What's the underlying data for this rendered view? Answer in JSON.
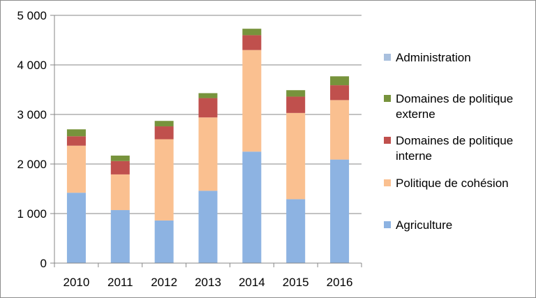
{
  "chart_data": {
    "type": "bar",
    "stacked": true,
    "categories": [
      "2010",
      "2011",
      "2012",
      "2013",
      "2014",
      "2015",
      "2016"
    ],
    "series": [
      {
        "name": "Agriculture",
        "color": "#8db3e2",
        "values": [
          1420,
          1070,
          860,
          1460,
          2250,
          1290,
          2090
        ]
      },
      {
        "name": "Politique de cohésion",
        "color": "#fac090",
        "values": [
          950,
          720,
          1640,
          1480,
          2050,
          1740,
          1200
        ]
      },
      {
        "name": "Domaines de politique interne",
        "color": "#c0504d",
        "values": [
          190,
          270,
          260,
          390,
          300,
          330,
          300
        ]
      },
      {
        "name": "Domaines de politique externe",
        "color": "#77933c",
        "values": [
          140,
          110,
          110,
          100,
          130,
          130,
          180
        ]
      },
      {
        "name": "Administration",
        "color": "#a9c0de",
        "values": [
          0,
          0,
          0,
          0,
          0,
          0,
          0
        ]
      }
    ],
    "ylim": [
      0,
      5000
    ],
    "yticks": [
      0,
      1000,
      2000,
      3000,
      4000,
      5000
    ],
    "ytick_labels": [
      "0",
      "1 000",
      "2 000",
      "3 000",
      "4 000",
      "5 000"
    ],
    "grid": true,
    "legend_position": "right",
    "legend_order": [
      {
        "series_index": 4,
        "lines": [
          "Administration"
        ]
      },
      {
        "series_index": 3,
        "lines": [
          "Domaines de politique",
          "externe"
        ]
      },
      {
        "series_index": 2,
        "lines": [
          "Domaines de politique",
          "interne"
        ]
      },
      {
        "series_index": 1,
        "lines": [
          "Politique de cohésion"
        ]
      },
      {
        "series_index": 0,
        "lines": [
          "Agriculture"
        ]
      }
    ]
  }
}
